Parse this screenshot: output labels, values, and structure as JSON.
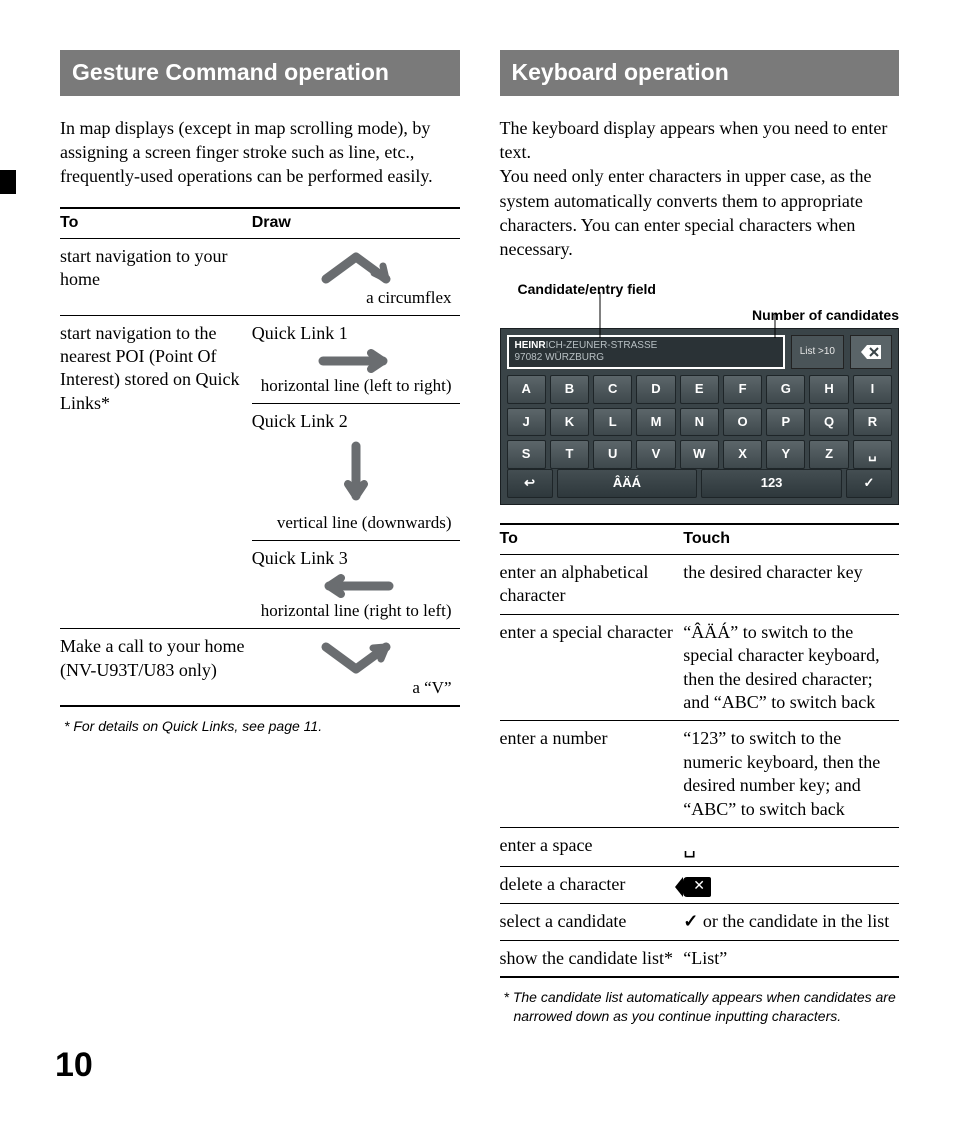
{
  "page_number": "10",
  "left": {
    "header": "Gesture Command operation",
    "intro": "In map displays (except in map scrolling mode), by assigning a screen finger stroke such as line, etc., frequently-used operations can be performed easily.",
    "table": {
      "col1": "To",
      "col2": "Draw",
      "rows": [
        {
          "to": "start navigation to your home",
          "draw_label": "a circumflex",
          "gesture": "circumflex"
        },
        {
          "to": "start navigation to the nearest POI (Point Of Interest) stored on Quick Links*",
          "sub": [
            {
              "title": "Quick Link 1",
              "draw_label": "horizontal line (left to right)",
              "gesture": "h-right"
            },
            {
              "title": "Quick Link 2",
              "draw_label": "vertical line (downwards)",
              "gesture": "v-down"
            },
            {
              "title": "Quick Link 3",
              "draw_label": "horizontal line (right to left)",
              "gesture": "h-left"
            }
          ]
        },
        {
          "to": "Make a call to your home (NV-U93T/U83 only)",
          "draw_label": "a “V”",
          "gesture": "v-shape"
        }
      ]
    },
    "footnote": "* For details on Quick Links, see page 11."
  },
  "right": {
    "header": "Keyboard operation",
    "intro": "The keyboard display appears when you need to enter text.\nYou need only enter characters in upper case, as the system automatically converts them to appropriate characters. You can enter special characters when necessary.",
    "kb_labels": {
      "candidate": "Candidate/entry field",
      "num_candidates": "Number of candidates"
    },
    "keyboard": {
      "typed": "HEINR",
      "rest": "ICH-ZEUNER-STRASSE",
      "line2": "97082 WÜRZBURG",
      "list_label": "List >10",
      "delete_glyph": "⌫",
      "rows": [
        [
          "A",
          "B",
          "C",
          "D",
          "E",
          "F",
          "G",
          "H",
          "I"
        ],
        [
          "J",
          "K",
          "L",
          "M",
          "N",
          "O",
          "P",
          "Q",
          "R"
        ],
        [
          "S",
          "T",
          "U",
          "V",
          "W",
          "X",
          "Y",
          "Z",
          "␣"
        ]
      ],
      "bottom": {
        "back": "↩",
        "accents": "ÂÄÁ",
        "digits": "123",
        "ok": "✓"
      }
    },
    "table": {
      "col1": "To",
      "col2": "Touch",
      "rows": [
        {
          "to": "enter an alphabetical character",
          "touch": "the desired character key"
        },
        {
          "to": "enter a special character",
          "touch": "“ÂÄÁ” to switch to the special character keyboard, then the desired character; and “ABC” to switch back"
        },
        {
          "to": "enter a number",
          "touch": "“123” to switch to the numeric keyboard, then the desired number key; and “ABC” to switch back"
        },
        {
          "to": "enter a space",
          "touch_icon": "space"
        },
        {
          "to": "delete a character",
          "touch_icon": "delete"
        },
        {
          "to": "select a candidate",
          "touch_icon": "check",
          "touch_suffix": " or the candidate in the list"
        },
        {
          "to": "show the candidate list*",
          "touch": "“List”"
        }
      ]
    },
    "footnote": "* The candidate list automatically appears when candidates are narrowed down as you continue inputting characters."
  },
  "colors": {
    "header_bg": "#7a7a7a",
    "kb_bg": "#3a4448",
    "kb_key": "#5c666a",
    "arrow": "#6a6d70"
  }
}
